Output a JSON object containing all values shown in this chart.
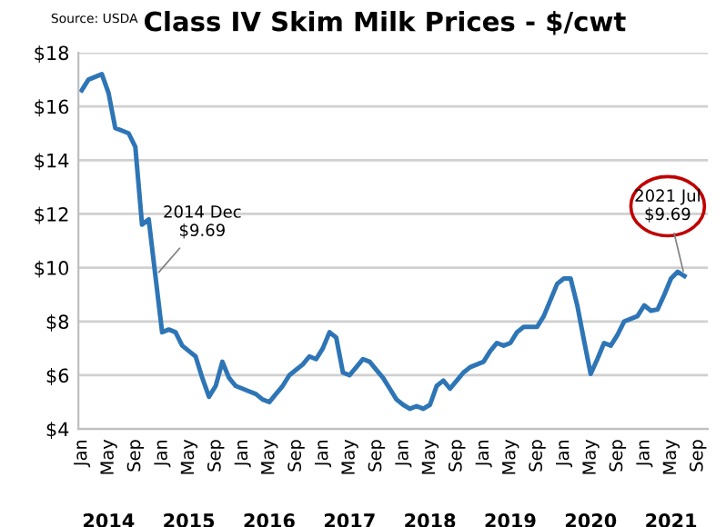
{
  "chart_data": {
    "type": "line",
    "title": "Class IV Skim Milk Prices - $/cwt",
    "x": [
      "2014-01",
      "2014-02",
      "2014-03",
      "2014-04",
      "2014-05",
      "2014-06",
      "2014-07",
      "2014-08",
      "2014-09",
      "2014-10",
      "2014-11",
      "2014-12",
      "2015-01",
      "2015-02",
      "2015-03",
      "2015-04",
      "2015-05",
      "2015-06",
      "2015-07",
      "2015-08",
      "2015-09",
      "2015-10",
      "2015-11",
      "2015-12",
      "2016-01",
      "2016-02",
      "2016-03",
      "2016-04",
      "2016-05",
      "2016-06",
      "2016-07",
      "2016-08",
      "2016-09",
      "2016-10",
      "2016-11",
      "2016-12",
      "2017-01",
      "2017-02",
      "2017-03",
      "2017-04",
      "2017-05",
      "2017-06",
      "2017-07",
      "2017-08",
      "2017-09",
      "2017-10",
      "2017-11",
      "2017-12",
      "2018-01",
      "2018-02",
      "2018-03",
      "2018-04",
      "2018-05",
      "2018-06",
      "2018-07",
      "2018-08",
      "2018-09",
      "2018-10",
      "2018-11",
      "2018-12",
      "2019-01",
      "2019-02",
      "2019-03",
      "2019-04",
      "2019-05",
      "2019-06",
      "2019-07",
      "2019-08",
      "2019-09",
      "2019-10",
      "2019-11",
      "2019-12",
      "2020-01",
      "2020-02",
      "2020-03",
      "2020-04",
      "2020-05",
      "2020-06",
      "2020-07",
      "2020-08",
      "2020-09",
      "2020-10",
      "2020-11",
      "2020-12",
      "2021-01",
      "2021-02",
      "2021-03",
      "2021-04",
      "2021-05",
      "2021-06",
      "2021-07"
    ],
    "series": [
      {
        "color": "#2e75b6",
        "values": [
          16.6,
          17.0,
          17.1,
          17.2,
          16.5,
          15.2,
          15.1,
          15.0,
          14.5,
          11.6,
          11.8,
          9.69,
          7.6,
          7.7,
          7.6,
          7.1,
          6.9,
          6.7,
          5.9,
          5.2,
          5.6,
          6.5,
          5.9,
          5.6,
          5.5,
          5.4,
          5.3,
          5.1,
          5.0,
          5.3,
          5.6,
          6.0,
          6.2,
          6.4,
          6.7,
          6.6,
          7.0,
          7.6,
          7.4,
          6.1,
          6.0,
          6.3,
          6.6,
          6.5,
          6.2,
          5.9,
          5.5,
          5.1,
          4.9,
          4.75,
          4.85,
          4.75,
          4.9,
          5.6,
          5.8,
          5.5,
          5.8,
          6.1,
          6.3,
          6.4,
          6.5,
          6.9,
          7.2,
          7.1,
          7.2,
          7.6,
          7.8,
          7.8,
          7.8,
          8.2,
          8.8,
          9.4,
          9.6,
          9.6,
          8.6,
          7.3,
          6.05,
          6.6,
          7.2,
          7.1,
          7.5,
          8.0,
          8.1,
          8.2,
          8.6,
          8.4,
          8.45,
          9.0,
          9.6,
          9.85,
          9.69
        ]
      }
    ],
    "xlim": [
      "2013-12-16",
      "2021-10-16"
    ],
    "xticks": [
      {
        "value": "2014-01",
        "label": "Jan"
      },
      {
        "value": "2014-05",
        "label": "May"
      },
      {
        "value": "2014-09",
        "label": "Sep"
      },
      {
        "value": "2015-01",
        "label": "Jan"
      },
      {
        "value": "2015-05",
        "label": "May"
      },
      {
        "value": "2015-09",
        "label": "Sep"
      },
      {
        "value": "2016-01",
        "label": "Jan"
      },
      {
        "value": "2016-05",
        "label": "May"
      },
      {
        "value": "2016-09",
        "label": "Sep"
      },
      {
        "value": "2017-01",
        "label": "Jan"
      },
      {
        "value": "2017-05",
        "label": "May"
      },
      {
        "value": "2017-09",
        "label": "Sep"
      },
      {
        "value": "2018-01",
        "label": "Jan"
      },
      {
        "value": "2018-05",
        "label": "May"
      },
      {
        "value": "2018-09",
        "label": "Sep"
      },
      {
        "value": "2019-01",
        "label": "Jan"
      },
      {
        "value": "2019-05",
        "label": "May"
      },
      {
        "value": "2019-09",
        "label": "Sep"
      },
      {
        "value": "2020-01",
        "label": "Jan"
      },
      {
        "value": "2020-05",
        "label": "May"
      },
      {
        "value": "2020-09",
        "label": "Sep"
      },
      {
        "value": "2021-01",
        "label": "Jan"
      },
      {
        "value": "2021-05",
        "label": "May"
      },
      {
        "value": "2021-09",
        "label": "Sep"
      }
    ],
    "x2lim": [
      "2013-12-16",
      "2021-10-16"
    ],
    "x2ticks": [
      {
        "value": "2014-05",
        "label": "2014"
      },
      {
        "value": "2015-05",
        "label": "2015"
      },
      {
        "value": "2016-05",
        "label": "2016"
      },
      {
        "value": "2017-05",
        "label": "2017"
      },
      {
        "value": "2018-05",
        "label": "2018"
      },
      {
        "value": "2019-05",
        "label": "2019"
      },
      {
        "value": "2020-05",
        "label": "2020"
      },
      {
        "value": "2021-05",
        "label": "2021"
      }
    ],
    "ylim": [
      4,
      18
    ],
    "yticks": [
      {
        "value": 4,
        "label": "$4"
      },
      {
        "value": 6,
        "label": "$6"
      },
      {
        "value": 8,
        "label": "$8"
      },
      {
        "value": 10,
        "label": "$10"
      },
      {
        "value": 12,
        "label": "$12"
      },
      {
        "value": 14,
        "label": "$14"
      },
      {
        "value": 16,
        "label": "$16"
      },
      {
        "value": 18,
        "label": "$18"
      }
    ],
    "grid": "y",
    "annotations": [
      "Source: USDA",
      {
        "text": "2014 Dec\n$9.69",
        "x": "2014-12",
        "y": 9.69
      },
      {
        "text": "2021 Jul\n$9.69",
        "x": "2021-07",
        "y": 9.69
      }
    ]
  }
}
